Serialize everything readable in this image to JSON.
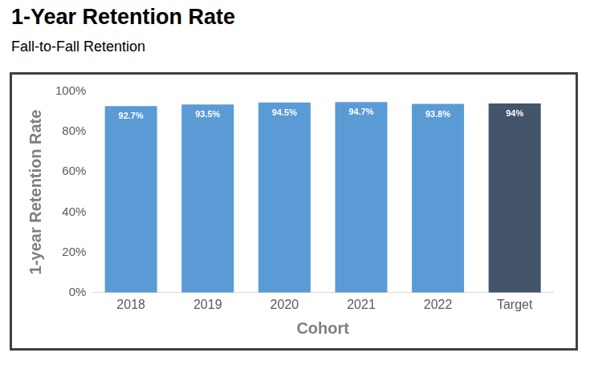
{
  "chart_data": {
    "type": "bar",
    "title": "1-Year Retention Rate",
    "subtitle": "Fall-to-Fall Retention",
    "x_label": "Cohort",
    "y_label": "1-year Retention Rate",
    "categories": [
      "2018",
      "2019",
      "2020",
      "2021",
      "2022",
      "Target"
    ],
    "values": [
      92.7,
      93.5,
      94.5,
      94.7,
      93.8,
      94
    ],
    "value_labels": [
      "92.7%",
      "93.5%",
      "94.5%",
      "94.7%",
      "93.8%",
      "94%"
    ],
    "colors": [
      "#5b9bd5",
      "#5b9bd5",
      "#5b9bd5",
      "#5b9bd5",
      "#5b9bd5",
      "#44546a"
    ],
    "ylim": [
      0,
      100
    ],
    "yticks": [
      {
        "value": 0,
        "label": "0%"
      },
      {
        "value": 20,
        "label": "20%"
      },
      {
        "value": 40,
        "label": "40%"
      },
      {
        "value": 60,
        "label": "60%"
      },
      {
        "value": 80,
        "label": "80%"
      },
      {
        "value": 100,
        "label": "100%"
      }
    ],
    "grid": false,
    "data_labels": true
  }
}
